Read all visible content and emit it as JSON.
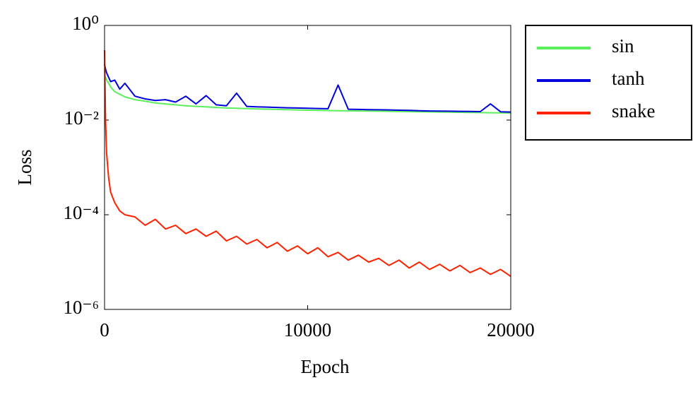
{
  "chart_data": {
    "type": "line",
    "xlabel": "Epoch",
    "ylabel": "Loss",
    "yscale": "log",
    "legend": "outside right",
    "xlim": [
      0,
      20000
    ],
    "xticks": [
      0,
      10000,
      20000
    ],
    "ylim": [
      1e-06,
      1
    ],
    "yticks": [
      {
        "value": 1,
        "label": "10⁰"
      },
      {
        "value": 0.01,
        "label": "10⁻²"
      },
      {
        "value": 0.0001,
        "label": "10⁻⁴"
      },
      {
        "value": 1e-06,
        "label": "10⁻⁶"
      }
    ],
    "x": [
      0,
      50,
      100,
      200,
      300,
      500,
      750,
      1000,
      1500,
      2000,
      2500,
      3000,
      3500,
      4000,
      4500,
      5000,
      5500,
      6000,
      6500,
      7000,
      7500,
      8000,
      8500,
      9000,
      9500,
      10000,
      10500,
      11000,
      11500,
      12000,
      12500,
      13000,
      13500,
      14000,
      14500,
      15000,
      15500,
      16000,
      16500,
      17000,
      17500,
      18000,
      18500,
      19000,
      19500,
      20000
    ],
    "series": [
      {
        "name": "sin",
        "color": "#5cef5c",
        "values": [
          0.09,
          0.08,
          0.07,
          0.06,
          0.05,
          0.04,
          0.035,
          0.031,
          0.027,
          0.025,
          0.023,
          0.022,
          0.021,
          0.02,
          0.0195,
          0.019,
          0.0185,
          0.018,
          0.0178,
          0.0175,
          0.0172,
          0.017,
          0.0168,
          0.0166,
          0.0164,
          0.0162,
          0.016,
          0.0159,
          0.0158,
          0.0157,
          0.0156,
          0.0155,
          0.0154,
          0.0153,
          0.0152,
          0.0151,
          0.015,
          0.0149,
          0.0148,
          0.0147,
          0.0146,
          0.0145,
          0.0144,
          0.0143,
          0.0142,
          0.0141
        ]
      },
      {
        "name": "tanh",
        "color": "#0000dd",
        "values": [
          0.15,
          0.12,
          0.1,
          0.08,
          0.065,
          0.07,
          0.045,
          0.06,
          0.032,
          0.028,
          0.026,
          0.027,
          0.024,
          0.032,
          0.022,
          0.033,
          0.021,
          0.02,
          0.037,
          0.0195,
          0.019,
          0.0188,
          0.0185,
          0.0182,
          0.018,
          0.0178,
          0.0176,
          0.0174,
          0.055,
          0.017,
          0.0168,
          0.0166,
          0.0165,
          0.0164,
          0.0162,
          0.016,
          0.0158,
          0.0156,
          0.0155,
          0.0154,
          0.0153,
          0.0152,
          0.0151,
          0.022,
          0.015,
          0.0148
        ]
      },
      {
        "name": "snake",
        "color": "#ff2200",
        "values": [
          0.3,
          0.01,
          0.002,
          0.0006,
          0.0003,
          0.00018,
          0.00012,
          0.0001,
          9e-05,
          6e-05,
          8e-05,
          5e-05,
          6e-05,
          4e-05,
          5e-05,
          3.5e-05,
          4.5e-05,
          2.8e-05,
          3.5e-05,
          2.4e-05,
          3e-05,
          2e-05,
          2.6e-05,
          1.7e-05,
          2.2e-05,
          1.5e-05,
          2e-05,
          1.3e-05,
          1.6e-05,
          1.1e-05,
          1.4e-05,
          1e-05,
          1.2e-05,
          8.5e-06,
          1.1e-05,
          7.5e-06,
          1e-05,
          7e-06,
          9e-06,
          6.5e-06,
          8.5e-06,
          6e-06,
          7.5e-06,
          5.5e-06,
          7e-06,
          5e-06
        ]
      }
    ]
  }
}
